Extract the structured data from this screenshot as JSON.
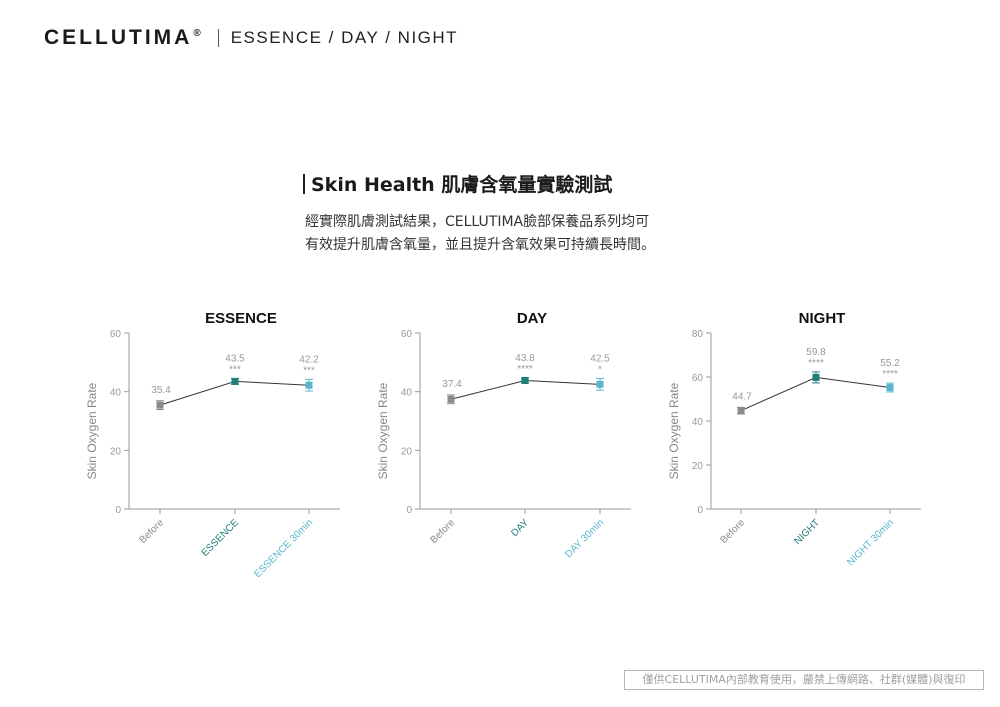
{
  "header": {
    "brand": "CELLUTIMA",
    "reg_mark": "®",
    "subtitle": "ESSENCE / DAY / NIGHT"
  },
  "section": {
    "title": "Skin Health 肌膚含氧量實驗測試",
    "description_line1": "經實際肌膚測試結果，CELLUTIMA臉部保養品系列均可",
    "description_line2": "有效提升肌膚含氧量，並且提升含氧效果可持續長時間。"
  },
  "footer": {
    "notice": "僅供CELLUTIMA內部教育使用，嚴禁上傳網路、社群(媒體)與復印"
  },
  "colors": {
    "before": "#8a8a8a",
    "product": "#1f7f7a",
    "after30": "#5ab6cc",
    "line": "#333333",
    "axis": "#9a9a9a"
  },
  "chart_data": [
    {
      "type": "line",
      "title": "ESSENCE",
      "ylabel": "Skin Oxygen Rate",
      "categories": [
        "Before",
        "ESSENCE",
        "ESSENCE 30min"
      ],
      "values": [
        35.4,
        43.5,
        42.2
      ],
      "error": [
        1.5,
        1.0,
        2.0
      ],
      "significance": [
        "",
        "***",
        "***"
      ],
      "data_labels": [
        "35.4",
        "43.5",
        "42.2"
      ],
      "ylim": [
        0,
        60
      ],
      "yticks": [
        0,
        20,
        40,
        60
      ]
    },
    {
      "type": "line",
      "title": "DAY",
      "ylabel": "Skin Oxygen Rate",
      "categories": [
        "Before",
        "DAY",
        "DAY 30min"
      ],
      "values": [
        37.4,
        43.8,
        42.5
      ],
      "error": [
        1.5,
        0.8,
        2.0
      ],
      "significance": [
        "",
        "****",
        "*"
      ],
      "data_labels": [
        "37.4",
        "43.8",
        "42.5"
      ],
      "ylim": [
        0,
        60
      ],
      "yticks": [
        0,
        20,
        40,
        60
      ]
    },
    {
      "type": "line",
      "title": "NIGHT",
      "ylabel": "Skin Oxygen Rate",
      "categories": [
        "Before",
        "NIGHT",
        "NIGHT 30min"
      ],
      "values": [
        44.7,
        59.8,
        55.2
      ],
      "error": [
        1.5,
        2.5,
        2.0
      ],
      "significance": [
        "",
        "****",
        "****"
      ],
      "data_labels": [
        "44.7",
        "59.8",
        "55.2"
      ],
      "ylim": [
        0,
        80
      ],
      "yticks": [
        0,
        20,
        40,
        60,
        80
      ]
    }
  ]
}
